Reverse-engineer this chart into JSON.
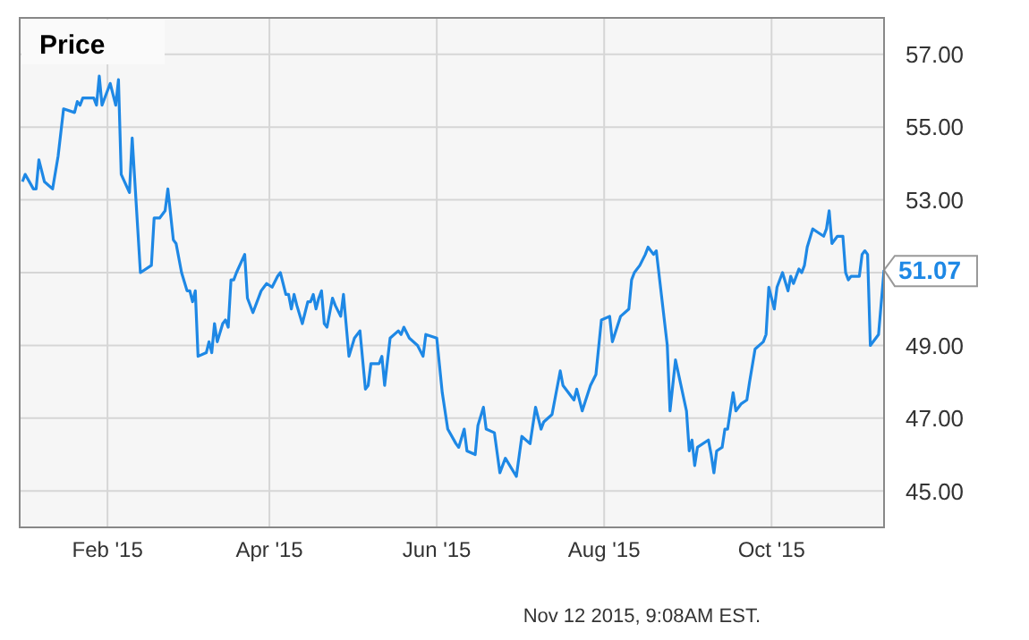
{
  "chart_data": {
    "type": "line",
    "title": "Price",
    "grid": true,
    "marker": "none",
    "line_style": "solid",
    "xlim": [
      "2014-12-31",
      "2015-11-11"
    ],
    "xticks": [
      {
        "value": "2015-02-01",
        "label": "Feb '15"
      },
      {
        "value": "2015-04-01",
        "label": "Apr '15"
      },
      {
        "value": "2015-06-01",
        "label": "Jun '15"
      },
      {
        "value": "2015-08-01",
        "label": "Aug '15"
      },
      {
        "value": "2015-10-01",
        "label": "Oct '15"
      }
    ],
    "ylim": [
      44,
      58
    ],
    "yticks": [
      {
        "value": 45,
        "label": "45.00"
      },
      {
        "value": 47,
        "label": "47.00"
      },
      {
        "value": 49,
        "label": "49.00"
      },
      {
        "value": 51,
        "label": null
      },
      {
        "value": 53,
        "label": "53.00"
      },
      {
        "value": 55,
        "label": "55.00"
      },
      {
        "value": 57,
        "label": "57.00"
      }
    ],
    "annotations": [
      {
        "text": "51.07",
        "x": "2015-11-11",
        "y": 51.07
      },
      "Nov 12 2015, 9:08AM EST."
    ],
    "series": [
      {
        "color": "#1e88e5",
        "x": [
          "2015-01-01",
          "2015-01-02",
          "2015-01-05",
          "2015-01-06",
          "2015-01-07",
          "2015-01-09",
          "2015-01-12",
          "2015-01-14",
          "2015-01-16",
          "2015-01-20",
          "2015-01-21",
          "2015-01-22",
          "2015-01-23",
          "2015-01-27",
          "2015-01-28",
          "2015-01-29",
          "2015-01-30",
          "2015-02-02",
          "2015-02-04",
          "2015-02-05",
          "2015-02-06",
          "2015-02-09",
          "2015-02-10",
          "2015-02-13",
          "2015-02-17",
          "2015-02-18",
          "2015-02-20",
          "2015-02-22",
          "2015-02-23",
          "2015-02-25",
          "2015-02-26",
          "2015-02-28",
          "2015-03-02",
          "2015-03-03",
          "2015-03-04",
          "2015-03-05",
          "2015-03-06",
          "2015-03-09",
          "2015-03-10",
          "2015-03-11",
          "2015-03-12",
          "2015-03-13",
          "2015-03-15",
          "2015-03-16",
          "2015-03-17",
          "2015-03-18",
          "2015-03-19",
          "2015-03-20",
          "2015-03-23",
          "2015-03-24",
          "2015-03-26",
          "2015-03-29",
          "2015-03-30",
          "2015-03-31",
          "2015-04-02",
          "2015-04-04",
          "2015-04-05",
          "2015-04-07",
          "2015-04-08",
          "2015-04-09",
          "2015-04-10",
          "2015-04-11",
          "2015-04-13",
          "2015-04-15",
          "2015-04-16",
          "2015-04-17",
          "2015-04-18",
          "2015-04-19",
          "2015-04-20",
          "2015-04-21",
          "2015-04-22",
          "2015-04-24",
          "2015-04-25",
          "2015-04-27",
          "2015-04-28",
          "2015-04-30",
          "2015-05-02",
          "2015-05-04",
          "2015-05-06",
          "2015-05-07",
          "2015-05-08",
          "2015-05-11",
          "2015-05-12",
          "2015-05-13",
          "2015-05-15",
          "2015-05-18",
          "2015-05-19",
          "2015-05-20",
          "2015-05-22",
          "2015-05-25",
          "2015-05-27",
          "2015-05-28",
          "2015-06-01",
          "2015-06-03",
          "2015-06-05",
          "2015-06-08",
          "2015-06-09",
          "2015-06-11",
          "2015-06-12",
          "2015-06-15",
          "2015-06-16",
          "2015-06-18",
          "2015-06-19",
          "2015-06-22",
          "2015-06-24",
          "2015-06-26",
          "2015-06-30",
          "2015-07-02",
          "2015-07-05",
          "2015-07-07",
          "2015-07-09",
          "2015-07-10",
          "2015-07-13",
          "2015-07-16",
          "2015-07-17",
          "2015-07-21",
          "2015-07-22",
          "2015-07-24",
          "2015-07-27",
          "2015-07-29",
          "2015-07-31",
          "2015-08-03",
          "2015-08-04",
          "2015-08-07",
          "2015-08-10",
          "2015-08-11",
          "2015-08-12",
          "2015-08-14",
          "2015-08-16",
          "2015-08-17",
          "2015-08-19",
          "2015-08-20",
          "2015-08-24",
          "2015-08-25",
          "2015-08-27",
          "2015-08-31",
          "2015-09-01",
          "2015-09-02",
          "2015-09-03",
          "2015-09-04",
          "2015-09-08",
          "2015-09-09",
          "2015-09-10",
          "2015-09-11",
          "2015-09-13",
          "2015-09-14",
          "2015-09-15",
          "2015-09-17",
          "2015-09-18",
          "2015-09-20",
          "2015-09-22",
          "2015-09-23",
          "2015-09-25",
          "2015-09-28",
          "2015-09-29",
          "2015-09-30",
          "2015-10-02",
          "2015-10-03",
          "2015-10-05",
          "2015-10-07",
          "2015-10-08",
          "2015-10-09",
          "2015-10-11",
          "2015-10-12",
          "2015-10-13",
          "2015-10-14",
          "2015-10-16",
          "2015-10-18",
          "2015-10-20",
          "2015-10-21",
          "2015-10-22",
          "2015-10-23",
          "2015-10-25",
          "2015-10-27",
          "2015-10-28",
          "2015-10-29",
          "2015-10-30",
          "2015-11-02",
          "2015-11-03",
          "2015-11-04",
          "2015-11-05",
          "2015-11-06",
          "2015-11-09",
          "2015-11-11"
        ],
        "values": [
          53.5,
          53.7,
          53.3,
          53.3,
          54.1,
          53.5,
          53.3,
          54.2,
          55.5,
          55.4,
          55.7,
          55.6,
          55.8,
          55.8,
          55.6,
          56.4,
          55.6,
          56.2,
          55.6,
          56.3,
          53.7,
          53.2,
          54.7,
          51.0,
          51.2,
          52.5,
          52.5,
          52.7,
          53.3,
          51.9,
          51.8,
          51.0,
          50.5,
          50.5,
          50.2,
          50.5,
          48.7,
          48.8,
          49.1,
          48.8,
          49.6,
          49.1,
          49.6,
          49.7,
          49.5,
          50.8,
          50.8,
          51.0,
          51.5,
          50.3,
          49.9,
          50.5,
          50.6,
          50.7,
          50.6,
          50.9,
          51.0,
          50.4,
          50.4,
          50.0,
          50.4,
          50.1,
          49.6,
          50.2,
          50.2,
          50.4,
          50.0,
          50.3,
          50.5,
          49.6,
          49.5,
          50.3,
          50.1,
          49.8,
          50.4,
          48.7,
          49.2,
          49.4,
          47.8,
          47.9,
          48.5,
          48.5,
          48.7,
          47.9,
          49.2,
          49.4,
          49.3,
          49.5,
          49.2,
          49.0,
          48.7,
          49.3,
          49.2,
          47.7,
          46.7,
          46.3,
          46.2,
          46.7,
          46.1,
          46.0,
          46.8,
          47.3,
          46.7,
          46.6,
          45.5,
          45.9,
          45.4,
          46.5,
          46.3,
          47.3,
          46.7,
          46.9,
          47.1,
          48.3,
          47.9,
          47.5,
          47.8,
          47.2,
          47.9,
          48.2,
          49.7,
          49.8,
          49.1,
          49.8,
          50.0,
          50.8,
          51.0,
          51.2,
          51.5,
          51.7,
          51.5,
          51.6,
          49.0,
          47.2,
          48.6,
          47.2,
          46.1,
          46.4,
          45.7,
          46.2,
          46.4,
          46.0,
          45.5,
          46.1,
          46.2,
          46.7,
          46.7,
          47.7,
          47.2,
          47.4,
          47.5,
          48.0,
          48.9,
          49.1,
          49.3,
          50.6,
          50.0,
          50.6,
          51.0,
          50.5,
          50.9,
          50.7,
          51.1,
          51.0,
          51.2,
          51.7,
          52.2,
          52.1,
          52.0,
          52.2,
          52.7,
          51.8,
          52.0,
          52.0,
          51.0,
          50.8,
          50.9,
          50.9,
          51.5,
          51.6,
          51.5,
          49.0,
          49.3,
          51.07
        ]
      }
    ]
  }
}
